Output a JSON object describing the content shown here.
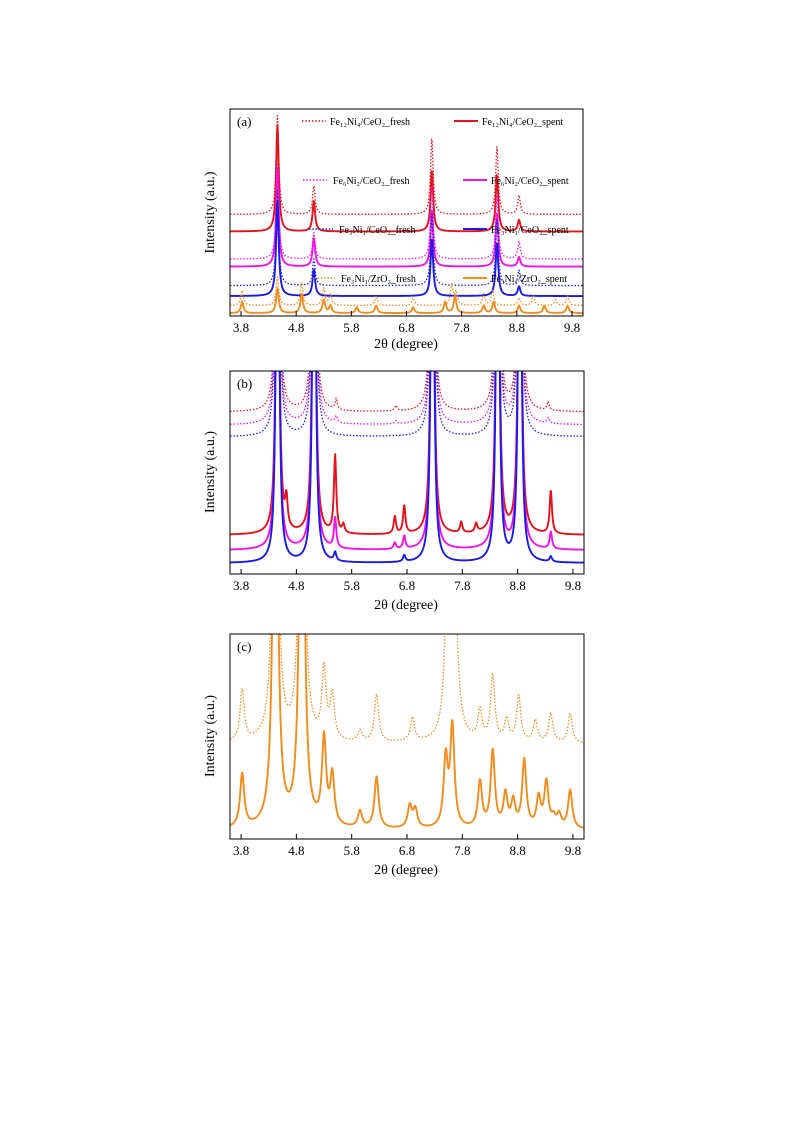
{
  "chart_data": [
    {
      "panel": "(a)",
      "type": "line",
      "xlabel": "2θ (degree)",
      "ylabel": "Intensity (a.u.)",
      "xlim": [
        3.6,
        10.0
      ],
      "xticks": [
        "3.8",
        "4.8",
        "5.8",
        "6.8",
        "7.8",
        "8.8",
        "9.8"
      ],
      "y_display": "stacked, arbitrary units",
      "grid": false,
      "legend_placement": "inline above each pair of curves",
      "series": [
        {
          "name": "Fe12Ni4/CeO2_fresh",
          "legend": "Fe₁₂Ni₄/CeO₂_fresh",
          "style": "dotted",
          "color": "#e3121b",
          "offset": 5.35,
          "peaks": [
            [
              4.46,
              5.2
            ],
            [
              5.12,
              1.5
            ],
            [
              6.48,
              0.0
            ],
            [
              7.26,
              4.0
            ],
            [
              8.44,
              3.6
            ],
            [
              8.84,
              1.0
            ]
          ]
        },
        {
          "name": "Fe12Ni4/CeO2_spent",
          "legend": "Fe₁₂Ni₄/CeO₂_spent",
          "style": "solid",
          "color": "#e3121b",
          "offset": 4.45,
          "peaks": [
            [
              4.46,
              5.6
            ],
            [
              5.12,
              1.6
            ],
            [
              7.26,
              3.2
            ],
            [
              8.44,
              3.0
            ],
            [
              8.84,
              0.6
            ]
          ]
        },
        {
          "name": "Fe6Ni2/CeO2_fresh",
          "legend": "Fe₆Ni₂/CeO₂_fresh",
          "style": "dotted",
          "color": "#f014e6",
          "offset": 3.0,
          "peaks": [
            [
              4.46,
              5.0
            ],
            [
              5.12,
              1.4
            ],
            [
              7.26,
              3.8
            ],
            [
              8.44,
              3.4
            ],
            [
              8.84,
              0.9
            ]
          ]
        },
        {
          "name": "Fe6Ni2/CeO2_spent",
          "legend": "Fe₆Ni₂/CeO₂_spent",
          "style": "solid",
          "color": "#f014e6",
          "offset": 2.6,
          "peaks": [
            [
              4.46,
              5.2
            ],
            [
              5.12,
              1.5
            ],
            [
              7.26,
              3.0
            ],
            [
              8.44,
              2.8
            ],
            [
              8.84,
              0.5
            ]
          ]
        },
        {
          "name": "Fe3Ni1/CeO2_fresh",
          "legend": "Fe₃Ni₁/CeO₂_fresh",
          "style": "dotted",
          "color": "#1a1ae6",
          "offset": 1.6,
          "peaks": [
            [
              4.46,
              5.0
            ],
            [
              5.12,
              1.4
            ],
            [
              7.26,
              3.8
            ],
            [
              8.44,
              3.5
            ],
            [
              8.84,
              0.8
            ]
          ]
        },
        {
          "name": "Fe3Ni1/CeO2_spent",
          "legend": "Fe₃Ni₁/CeO₂_spent",
          "style": "solid",
          "color": "#1a1ae6",
          "offset": 1.05,
          "peaks": [
            [
              4.46,
              5.0
            ],
            [
              5.12,
              1.4
            ],
            [
              7.26,
              3.0
            ],
            [
              8.44,
              2.8
            ],
            [
              8.84,
              0.5
            ]
          ]
        },
        {
          "name": "Fe3Ni1/ZrO2_fresh",
          "legend": "Fe₃Ni₁/ZrO₂_fresh",
          "style": "dotted",
          "color": "#f28c1e",
          "offset": 0.55,
          "peaks": [
            [
              3.82,
              0.8
            ],
            [
              4.46,
              1.5
            ],
            [
              4.9,
              1.2
            ],
            [
              5.3,
              0.9
            ],
            [
              5.42,
              0.6
            ],
            [
              6.25,
              0.5
            ],
            [
              6.92,
              0.4
            ],
            [
              7.62,
              1.1
            ],
            [
              7.7,
              0.7
            ],
            [
              8.2,
              0.6
            ],
            [
              8.36,
              0.8
            ],
            [
              8.84,
              0.4
            ],
            [
              9.1,
              0.5
            ],
            [
              9.5,
              0.3
            ],
            [
              9.72,
              0.5
            ]
          ]
        },
        {
          "name": "Fe3Ni1/ZrO2_spent",
          "legend": "Fe₃Ni₁/ZrO₂_spent",
          "style": "solid",
          "color": "#f28c1e",
          "offset": 0.15,
          "peaks": [
            [
              3.82,
              0.6
            ],
            [
              4.46,
              1.3
            ],
            [
              4.9,
              1.0
            ],
            [
              5.3,
              0.7
            ],
            [
              5.42,
              0.4
            ],
            [
              5.9,
              0.3
            ],
            [
              6.25,
              0.4
            ],
            [
              6.92,
              0.3
            ],
            [
              7.5,
              0.6
            ],
            [
              7.68,
              0.9
            ],
            [
              8.2,
              0.4
            ],
            [
              8.38,
              0.6
            ],
            [
              8.84,
              0.4
            ],
            [
              9.3,
              0.4
            ],
            [
              9.72,
              0.4
            ]
          ]
        }
      ]
    },
    {
      "panel": "(b)",
      "type": "line",
      "xlabel": "2θ (degree)",
      "ylabel": "Intensity (a.u.)",
      "xlim": [
        3.6,
        10.0
      ],
      "xticks": [
        "3.8",
        "4.8",
        "5.8",
        "6.8",
        "7.8",
        "8.8",
        "9.8"
      ],
      "y_display": "zoomed baseline, stacked, arbitrary units",
      "grid": false,
      "series": [
        {
          "name": "Fe12Ni4/CeO2_fresh",
          "style": "dotted",
          "color": "#e3121b",
          "offset": 7.5,
          "peaks": [
            [
              4.46,
              30
            ],
            [
              5.12,
              30
            ],
            [
              5.52,
              0.5
            ],
            [
              6.6,
              0.25
            ],
            [
              7.26,
              30
            ],
            [
              8.44,
              30
            ],
            [
              8.84,
              30
            ],
            [
              9.35,
              0.4
            ]
          ]
        },
        {
          "name": "Fe6Ni2/CeO2_fresh",
          "style": "dotted",
          "color": "#f014e6",
          "offset": 6.9,
          "peaks": [
            [
              4.46,
              30
            ],
            [
              5.12,
              30
            ],
            [
              5.52,
              0.3
            ],
            [
              6.6,
              0.15
            ],
            [
              7.26,
              30
            ],
            [
              8.44,
              30
            ],
            [
              8.84,
              30
            ],
            [
              9.35,
              0.25
            ]
          ]
        },
        {
          "name": "Fe3Ni1/CeO2_fresh",
          "style": "dotted",
          "color": "#1a1ae6",
          "offset": 6.35,
          "peaks": [
            [
              4.46,
              30
            ],
            [
              5.12,
              30
            ],
            [
              7.26,
              30
            ],
            [
              8.44,
              30
            ],
            [
              8.84,
              30
            ]
          ]
        },
        {
          "name": "Fe12Ni4/CeO2_spent",
          "style": "solid",
          "color": "#e3121b",
          "offset": 1.8,
          "peaks": [
            [
              4.46,
              30
            ],
            [
              4.62,
              1.3
            ],
            [
              5.12,
              30
            ],
            [
              5.5,
              3.6
            ],
            [
              5.65,
              0.4
            ],
            [
              6.58,
              0.8
            ],
            [
              6.75,
              1.3
            ],
            [
              7.26,
              30
            ],
            [
              7.78,
              0.5
            ],
            [
              8.05,
              0.4
            ],
            [
              8.44,
              30
            ],
            [
              8.84,
              30
            ],
            [
              9.4,
              2.0
            ]
          ]
        },
        {
          "name": "Fe6Ni2/CeO2_spent",
          "style": "solid",
          "color": "#f014e6",
          "offset": 1.1,
          "peaks": [
            [
              4.46,
              30
            ],
            [
              5.12,
              30
            ],
            [
              5.5,
              1.4
            ],
            [
              6.58,
              0.3
            ],
            [
              6.75,
              0.6
            ],
            [
              7.26,
              30
            ],
            [
              8.44,
              30
            ],
            [
              8.84,
              30
            ],
            [
              9.4,
              0.8
            ]
          ]
        },
        {
          "name": "Fe3Ni1/CeO2_spent",
          "style": "solid",
          "color": "#1a1ae6",
          "offset": 0.5,
          "peaks": [
            [
              4.46,
              30
            ],
            [
              5.12,
              30
            ],
            [
              5.5,
              0.4
            ],
            [
              6.75,
              0.3
            ],
            [
              7.26,
              30
            ],
            [
              8.44,
              30
            ],
            [
              8.84,
              30
            ],
            [
              9.4,
              0.25
            ]
          ]
        }
      ]
    },
    {
      "panel": "(c)",
      "type": "line",
      "xlabel": "2θ (degree)",
      "ylabel": "Intensity (a.u.)",
      "xlim": [
        3.6,
        10.0
      ],
      "xticks": [
        "3.8",
        "4.8",
        "5.8",
        "6.8",
        "7.8",
        "8.8",
        "9.8"
      ],
      "y_display": "zoomed baseline, stacked, arbitrary units",
      "grid": false,
      "series": [
        {
          "name": "Fe3Ni1/ZrO2_fresh",
          "style": "dotted",
          "color": "#f28c1e",
          "offset": 5.2,
          "peaks": [
            [
              3.82,
              2.8
            ],
            [
              4.42,
              30
            ],
            [
              4.9,
              30
            ],
            [
              5.3,
              3.8
            ],
            [
              5.45,
              2.4
            ],
            [
              5.95,
              0.6
            ],
            [
              6.25,
              2.6
            ],
            [
              6.9,
              1.3
            ],
            [
              7.5,
              3.2
            ],
            [
              7.62,
              30
            ],
            [
              8.12,
              1.6
            ],
            [
              8.35,
              3.6
            ],
            [
              8.6,
              1.2
            ],
            [
              8.82,
              2.5
            ],
            [
              9.12,
              1.2
            ],
            [
              9.4,
              1.6
            ],
            [
              9.75,
              1.6
            ]
          ]
        },
        {
          "name": "Fe3Ni1/ZrO2_spent",
          "style": "solid",
          "color": "#f28c1e",
          "offset": 0.5,
          "peaks": [
            [
              3.82,
              2.9
            ],
            [
              4.42,
              30
            ],
            [
              4.9,
              30
            ],
            [
              5.3,
              4.7
            ],
            [
              5.45,
              2.7
            ],
            [
              5.95,
              0.9
            ],
            [
              6.25,
              2.8
            ],
            [
              6.85,
              1.2
            ],
            [
              6.95,
              1.0
            ],
            [
              7.5,
              3.7
            ],
            [
              7.62,
              5.5
            ],
            [
              8.12,
              2.5
            ],
            [
              8.35,
              4.2
            ],
            [
              8.58,
              1.8
            ],
            [
              8.72,
              1.4
            ],
            [
              8.92,
              3.7
            ],
            [
              9.18,
              1.6
            ],
            [
              9.32,
              2.5
            ],
            [
              9.45,
              0.5
            ],
            [
              9.55,
              0.7
            ],
            [
              9.75,
              2.1
            ]
          ]
        }
      ]
    }
  ]
}
